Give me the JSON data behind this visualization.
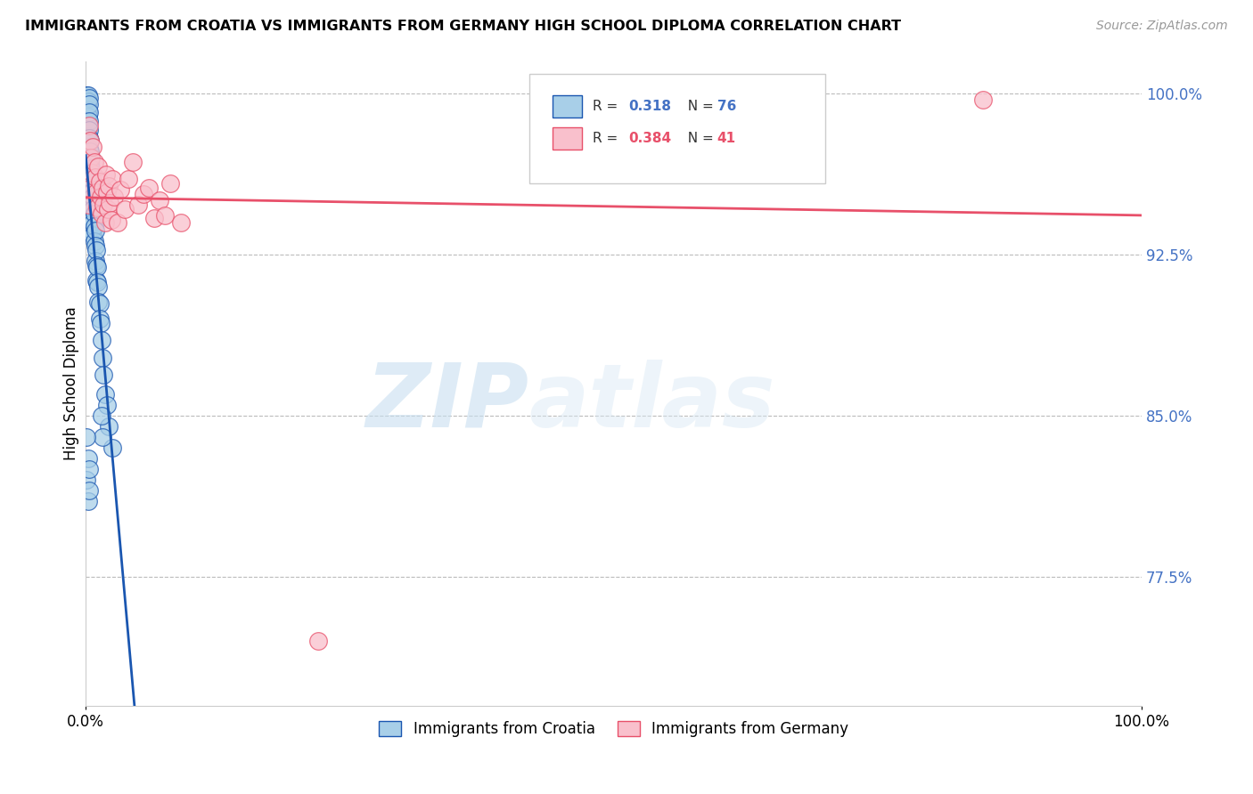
{
  "title": "IMMIGRANTS FROM CROATIA VS IMMIGRANTS FROM GERMANY HIGH SCHOOL DIPLOMA CORRELATION CHART",
  "source": "Source: ZipAtlas.com",
  "ylabel": "High School Diploma",
  "xlim": [
    0.0,
    1.0
  ],
  "ylim": [
    0.715,
    1.015
  ],
  "yticks": [
    0.775,
    0.85,
    0.925,
    1.0
  ],
  "ytick_labels": [
    "77.5%",
    "85.0%",
    "92.5%",
    "100.0%"
  ],
  "xtick_labels": [
    "0.0%",
    "100.0%"
  ],
  "xticks": [
    0.0,
    1.0
  ],
  "r_croatia": 0.318,
  "n_croatia": 76,
  "r_germany": 0.384,
  "n_germany": 41,
  "color_croatia": "#a8cfe8",
  "color_germany": "#f9c0cc",
  "line_color_croatia": "#1a56b0",
  "line_color_germany": "#e8506a",
  "watermark_zip": "ZIP",
  "watermark_atlas": "atlas",
  "legend_label_croatia": "Immigrants from Croatia",
  "legend_label_germany": "Immigrants from Germany",
  "croatia_x": [
    0.001,
    0.001,
    0.001,
    0.001,
    0.002,
    0.002,
    0.002,
    0.002,
    0.002,
    0.002,
    0.002,
    0.002,
    0.003,
    0.003,
    0.003,
    0.003,
    0.003,
    0.003,
    0.003,
    0.003,
    0.003,
    0.003,
    0.003,
    0.003,
    0.004,
    0.004,
    0.004,
    0.004,
    0.004,
    0.004,
    0.004,
    0.005,
    0.005,
    0.005,
    0.005,
    0.005,
    0.006,
    0.006,
    0.006,
    0.006,
    0.006,
    0.007,
    0.007,
    0.007,
    0.007,
    0.008,
    0.008,
    0.008,
    0.009,
    0.009,
    0.009,
    0.01,
    0.01,
    0.01,
    0.011,
    0.011,
    0.012,
    0.012,
    0.013,
    0.013,
    0.014,
    0.015,
    0.016,
    0.017,
    0.018,
    0.02,
    0.022,
    0.025,
    0.015,
    0.016,
    0.001,
    0.001,
    0.002,
    0.002,
    0.003,
    0.003
  ],
  "croatia_y": [
    0.999,
    0.997,
    0.993,
    0.988,
    0.999,
    0.996,
    0.992,
    0.989,
    0.985,
    0.98,
    0.975,
    0.97,
    0.998,
    0.995,
    0.991,
    0.987,
    0.983,
    0.979,
    0.974,
    0.969,
    0.965,
    0.96,
    0.955,
    0.95,
    0.978,
    0.973,
    0.968,
    0.963,
    0.958,
    0.953,
    0.948,
    0.97,
    0.965,
    0.96,
    0.954,
    0.948,
    0.96,
    0.954,
    0.948,
    0.942,
    0.936,
    0.952,
    0.946,
    0.94,
    0.934,
    0.944,
    0.938,
    0.931,
    0.936,
    0.929,
    0.922,
    0.927,
    0.92,
    0.913,
    0.919,
    0.912,
    0.91,
    0.903,
    0.902,
    0.895,
    0.893,
    0.885,
    0.877,
    0.869,
    0.86,
    0.855,
    0.845,
    0.835,
    0.85,
    0.84,
    0.84,
    0.82,
    0.83,
    0.81,
    0.825,
    0.815
  ],
  "germany_x": [
    0.001,
    0.002,
    0.003,
    0.004,
    0.005,
    0.006,
    0.007,
    0.008,
    0.009,
    0.01,
    0.011,
    0.012,
    0.013,
    0.014,
    0.015,
    0.016,
    0.017,
    0.018,
    0.019,
    0.02,
    0.021,
    0.022,
    0.023,
    0.024,
    0.025,
    0.027,
    0.03,
    0.033,
    0.037,
    0.04,
    0.045,
    0.05,
    0.055,
    0.06,
    0.065,
    0.07,
    0.075,
    0.08,
    0.09,
    0.22,
    0.85
  ],
  "germany_y": [
    0.955,
    0.948,
    0.985,
    0.978,
    0.97,
    0.963,
    0.975,
    0.968,
    0.961,
    0.954,
    0.947,
    0.966,
    0.959,
    0.952,
    0.944,
    0.956,
    0.948,
    0.94,
    0.962,
    0.954,
    0.946,
    0.957,
    0.949,
    0.941,
    0.96,
    0.952,
    0.94,
    0.955,
    0.946,
    0.96,
    0.968,
    0.948,
    0.953,
    0.956,
    0.942,
    0.95,
    0.943,
    0.958,
    0.94,
    0.745,
    0.997
  ]
}
